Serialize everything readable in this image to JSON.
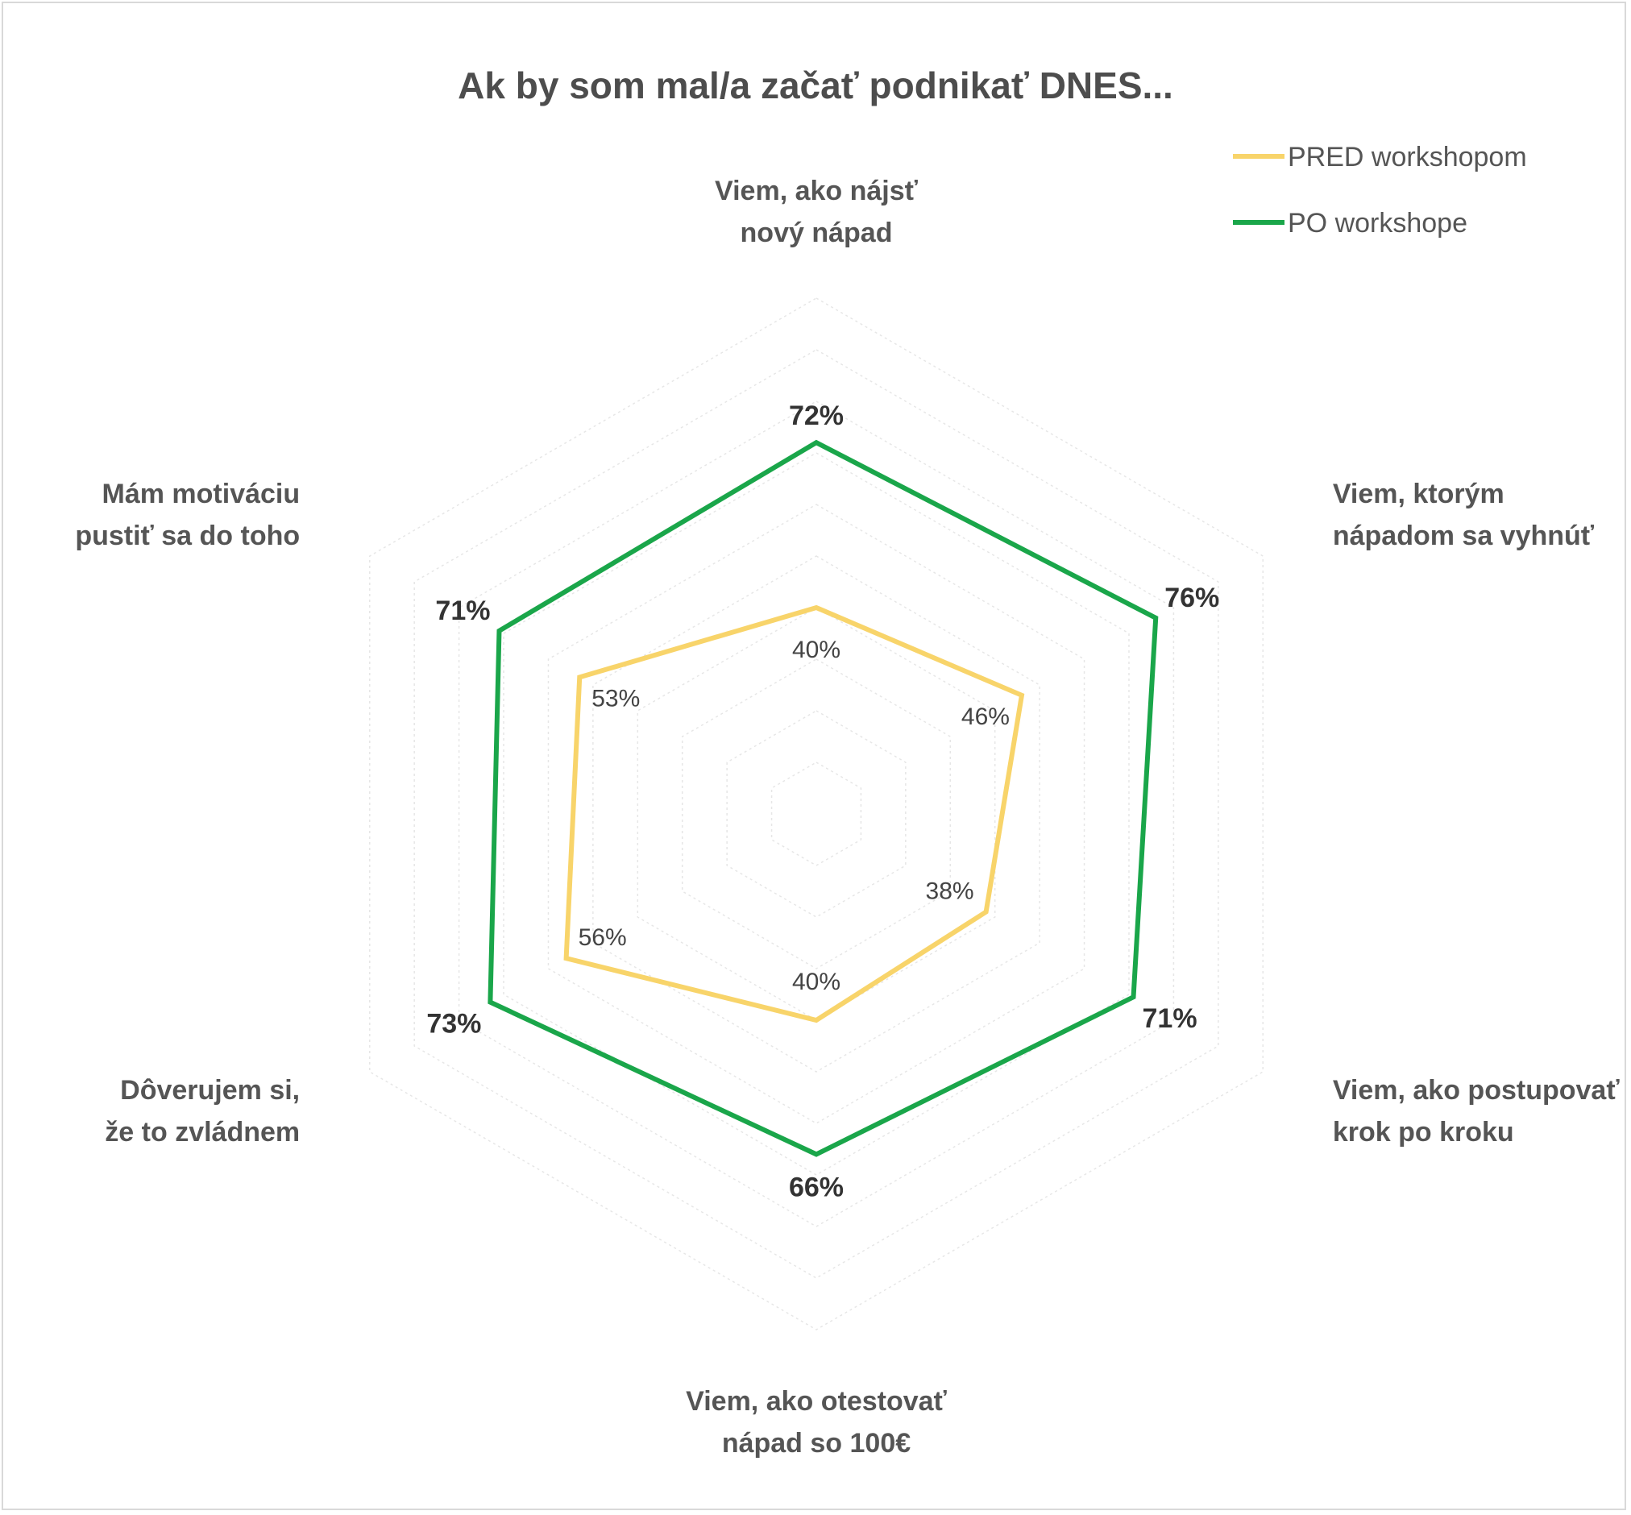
{
  "chart_data": {
    "type": "radar",
    "title": "Ak by som mal/a začať podnikať DNES...",
    "axes": [
      [
        "Viem, ako nájsť",
        "nový nápad"
      ],
      [
        "Viem, ktorým",
        "nápadom sa vyhnúť"
      ],
      [
        "Viem, ako postupovať",
        "krok po kroku"
      ],
      [
        "Viem, ako otestovať",
        "nápad so 100€"
      ],
      [
        "Dôverujem si,",
        "že to zvládnem"
      ],
      [
        "Mám motiváciu",
        "pustiť sa do toho"
      ]
    ],
    "series": [
      {
        "name": "PRED workshopom",
        "color": "#f8d46a",
        "values": [
          40,
          46,
          38,
          40,
          56,
          53
        ],
        "labels": [
          "40%",
          "46%",
          "38%",
          "40%",
          "56%",
          "53%"
        ]
      },
      {
        "name": "PO workshope",
        "color": "#1aa64a",
        "values": [
          72,
          76,
          71,
          66,
          73,
          71
        ],
        "labels": [
          "72%",
          "76%",
          "71%",
          "66%",
          "73%",
          "71%"
        ]
      }
    ],
    "scale": [
      0,
      100
    ],
    "gridlines": true,
    "legend_position": "top-right"
  }
}
